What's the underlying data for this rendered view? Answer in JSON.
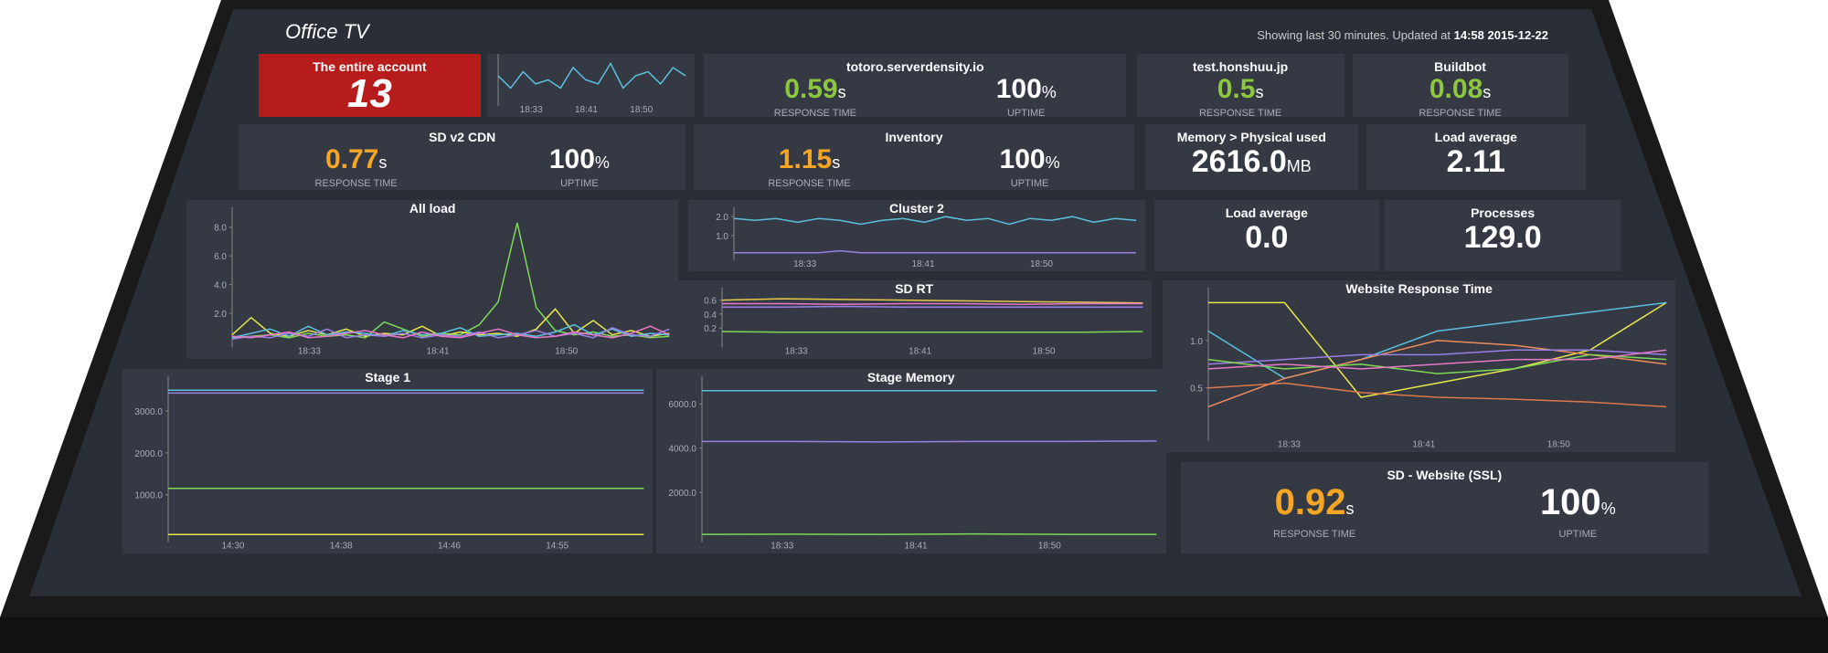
{
  "header": {
    "title": "Office TV",
    "status": "Showing last 30 minutes. Updated at",
    "updated": "14:58 2015-12-22"
  },
  "tiles": [
    {
      "kind": "account",
      "box": "a",
      "title": "The entire account",
      "value": "13"
    },
    {
      "kind": "metric",
      "box": "b",
      "title": "totoro.serverdensity.io",
      "metrics": [
        {
          "value": "0.59",
          "unit": "s",
          "label": "RESPONSE TIME",
          "color": "#8dc63f"
        },
        {
          "value": "100",
          "unit": "%",
          "label": "UPTIME",
          "color": "#ffffff"
        }
      ]
    },
    {
      "kind": "metric",
      "box": "c",
      "title": "test.honshuu.jp",
      "metrics": [
        {
          "value": "0.5",
          "unit": "s",
          "label": "RESPONSE TIME",
          "color": "#8dc63f"
        }
      ]
    },
    {
      "kind": "metric",
      "box": "d",
      "title": "Buildbot",
      "metrics": [
        {
          "value": "0.08",
          "unit": "s",
          "label": "RESPONSE TIME",
          "color": "#8dc63f"
        }
      ]
    },
    {
      "kind": "metric",
      "box": "e",
      "title": "SD v2 CDN",
      "metrics": [
        {
          "value": "0.77",
          "unit": "s",
          "label": "RESPONSE TIME",
          "color": "#f5a623"
        },
        {
          "value": "100",
          "unit": "%",
          "label": "UPTIME",
          "color": "#ffffff"
        }
      ]
    },
    {
      "kind": "metric",
      "box": "f",
      "title": "Inventory",
      "metrics": [
        {
          "value": "1.15",
          "unit": "s",
          "label": "RESPONSE TIME",
          "color": "#f5a623"
        },
        {
          "value": "100",
          "unit": "%",
          "label": "UPTIME",
          "color": "#ffffff"
        }
      ]
    },
    {
      "kind": "metric",
      "box": "g",
      "title": "Memory > Physical used",
      "metrics": [
        {
          "value": "2616.0",
          "unit": "MB",
          "color": "#ffffff"
        }
      ]
    },
    {
      "kind": "metric",
      "box": "h",
      "title": "Load average",
      "metrics": [
        {
          "value": "2.11",
          "color": "#ffffff"
        }
      ]
    },
    {
      "kind": "metric",
      "box": "i",
      "title": "Load average",
      "metrics": [
        {
          "value": "0.0",
          "color": "#ffffff"
        }
      ]
    },
    {
      "kind": "metric",
      "box": "j",
      "title": "Processes",
      "metrics": [
        {
          "value": "129.0",
          "color": "#ffffff"
        }
      ]
    },
    {
      "kind": "metric",
      "box": "k",
      "title": "SD - Website (SSL)",
      "metrics": [
        {
          "value": "0.92",
          "unit": "s",
          "label": "RESPONSE TIME",
          "color": "#f5a623"
        },
        {
          "value": "100",
          "unit": "%",
          "label": "UPTIME",
          "color": "#ffffff"
        }
      ]
    }
  ],
  "charts": [
    {
      "type": "line",
      "box": "s",
      "xticks": [
        "18:33",
        "18:41",
        "18:50"
      ],
      "ylim": [
        0,
        1
      ],
      "series": [
        {
          "color": "#5bc0de",
          "values": [
            0.6,
            0.3,
            0.7,
            0.4,
            0.5,
            0.3,
            0.8,
            0.5,
            0.4,
            0.9,
            0.3,
            0.6,
            0.7,
            0.4,
            0.8,
            0.6
          ]
        }
      ]
    },
    {
      "type": "line",
      "box": "l",
      "title": "All load",
      "xticks": [
        "18:33",
        "18:41",
        "18:50"
      ],
      "ylim": [
        0,
        9
      ],
      "yticks": [
        {
          "value": 2,
          "label": "2.0"
        },
        {
          "value": 4,
          "label": "4.0"
        },
        {
          "value": 6,
          "label": "6.0"
        },
        {
          "value": 8,
          "label": "8.0"
        }
      ],
      "series": [
        {
          "color": "#7ed957",
          "values": [
            0.3,
            0.4,
            0.5,
            0.3,
            0.6,
            0.4,
            0.5,
            0.3,
            1.4,
            0.9,
            0.4,
            0.6,
            0.5,
            1.2,
            2.8,
            8.3,
            2.4,
            0.8,
            0.5,
            0.7,
            0.4,
            0.5,
            0.3,
            0.4
          ]
        },
        {
          "color": "#e6e84a",
          "values": [
            0.5,
            1.7,
            0.6,
            0.4,
            0.8,
            0.5,
            0.9,
            0.4,
            0.6,
            0.5,
            1.1,
            0.4,
            0.7,
            0.5,
            0.6,
            0.4,
            0.9,
            2.3,
            0.6,
            1.5,
            0.5,
            0.8,
            0.4,
            0.6
          ]
        },
        {
          "color": "#5bc0de",
          "values": [
            0.3,
            0.6,
            0.9,
            0.4,
            1.1,
            0.5,
            0.7,
            0.6,
            0.4,
            0.8,
            0.5,
            0.6,
            1.0,
            0.4,
            0.5,
            0.6,
            0.4,
            0.7,
            1.2,
            0.5,
            0.9,
            0.4,
            0.6,
            0.5
          ]
        },
        {
          "color": "#9b7fe6",
          "values": [
            0.2,
            0.4,
            0.3,
            0.6,
            0.4,
            0.9,
            0.3,
            0.5,
            0.4,
            0.6,
            0.3,
            0.5,
            0.4,
            0.7,
            0.3,
            0.5,
            0.8,
            0.4,
            0.6,
            0.3,
            1.0,
            0.5,
            0.4,
            0.9
          ]
        },
        {
          "color": "#e879c6",
          "values": [
            0.4,
            0.3,
            0.5,
            0.7,
            0.3,
            0.4,
            0.6,
            0.8,
            0.5,
            0.3,
            0.7,
            0.4,
            0.3,
            0.6,
            0.9,
            0.5,
            0.3,
            0.4,
            0.7,
            0.5,
            0.3,
            0.6,
            1.1,
            0.5
          ]
        }
      ]
    },
    {
      "type": "line",
      "box": "m",
      "title": "Cluster 2",
      "xticks": [
        "18:33",
        "18:41",
        "18:50"
      ],
      "ylim": [
        0,
        2.2
      ],
      "yticks": [
        {
          "value": 1,
          "label": "1.0"
        },
        {
          "value": 2,
          "label": "2.0"
        }
      ],
      "series": [
        {
          "color": "#5bc0de",
          "values": [
            1.9,
            1.8,
            1.9,
            1.7,
            1.9,
            1.8,
            1.6,
            1.8,
            1.9,
            1.7,
            2.0,
            1.8,
            1.9,
            1.6,
            1.9,
            1.8,
            2.0,
            1.7,
            1.9,
            1.8
          ]
        },
        {
          "color": "#9b7fe6",
          "values": [
            0.1,
            0.1,
            0.1,
            0.1,
            0.1,
            0.2,
            0.1,
            0.1,
            0.1,
            0.1,
            0.1,
            0.1,
            0.1,
            0.1,
            0.1,
            0.1,
            0.1,
            0.1,
            0.1,
            0.1
          ]
        }
      ]
    },
    {
      "type": "line",
      "box": "n",
      "title": "SD RT",
      "xticks": [
        "18:33",
        "18:41",
        "18:50"
      ],
      "ylim": [
        0,
        0.7
      ],
      "yticks": [
        0.2,
        0.4,
        0.6
      ],
      "series": [
        {
          "color": "#e6c84a",
          "values": [
            0.6,
            0.62,
            0.61,
            0.6,
            0.59,
            0.58,
            0.57,
            0.56
          ]
        },
        {
          "color": "#e879c6",
          "values": [
            0.55,
            0.55,
            0.54,
            0.55,
            0.55,
            0.54,
            0.55,
            0.55
          ]
        },
        {
          "color": "#9b7fe6",
          "values": [
            0.5,
            0.5,
            0.51,
            0.5,
            0.5,
            0.5,
            0.5,
            0.5
          ]
        },
        {
          "color": "#7ed957",
          "values": [
            0.15,
            0.14,
            0.14,
            0.14,
            0.14,
            0.14,
            0.14,
            0.15
          ]
        }
      ]
    },
    {
      "type": "line",
      "box": "w",
      "title": "Website Response Time",
      "xticks": [
        "18:33",
        "18:41",
        "18:50"
      ],
      "ylim": [
        0,
        1.5
      ],
      "yticks": [
        0.5,
        {
          "value": 1,
          "label": "1.0"
        }
      ],
      "series": [
        {
          "color": "#e6e84a",
          "values": [
            1.4,
            1.4,
            0.4,
            0.55,
            0.7,
            0.9,
            1.4
          ]
        },
        {
          "color": "#5bc0de",
          "values": [
            1.1,
            0.6,
            0.8,
            1.1,
            1.2,
            1.3,
            1.4
          ]
        },
        {
          "color": "#f08c5a",
          "values": [
            0.3,
            0.6,
            0.8,
            1.0,
            0.95,
            0.85,
            0.75
          ]
        },
        {
          "color": "#e0784a",
          "values": [
            0.5,
            0.55,
            0.45,
            0.4,
            0.38,
            0.35,
            0.3
          ]
        },
        {
          "color": "#9b7fe6",
          "values": [
            0.75,
            0.8,
            0.85,
            0.85,
            0.9,
            0.9,
            0.85
          ]
        },
        {
          "color": "#7ed957",
          "values": [
            0.8,
            0.7,
            0.75,
            0.65,
            0.7,
            0.85,
            0.8
          ]
        },
        {
          "color": "#e879c6",
          "values": [
            0.7,
            0.75,
            0.7,
            0.75,
            0.8,
            0.8,
            0.9
          ]
        }
      ]
    },
    {
      "type": "line",
      "box": "t",
      "title": "Stage 1",
      "xticks": [
        "14:30",
        "14:38",
        "14:46",
        "14:55"
      ],
      "ylim": [
        0,
        3700
      ],
      "yticks": [
        {
          "value": 1000,
          "label": "1000.0"
        },
        {
          "value": 2000,
          "label": "2000.0"
        },
        {
          "value": 3000,
          "label": "3000.0"
        }
      ],
      "series": [
        {
          "color": "#5bc0de",
          "values": [
            3500,
            3500,
            3500,
            3500,
            3500,
            3500
          ]
        },
        {
          "color": "#9b7fe6",
          "values": [
            3430,
            3430,
            3430,
            3430,
            3430,
            3430
          ]
        },
        {
          "color": "#7ed957",
          "values": [
            1150,
            1150,
            1150,
            1150,
            1150,
            1150
          ]
        },
        {
          "color": "#e6e84a",
          "values": [
            50,
            50,
            50,
            50,
            50,
            50
          ]
        }
      ]
    },
    {
      "type": "line",
      "box": "u",
      "title": "Stage Memory",
      "xticks": [
        "18:33",
        "18:41",
        "18:50"
      ],
      "ylim": [
        0,
        7000
      ],
      "yticks": [
        {
          "value": 2000,
          "label": "2000.0"
        },
        {
          "value": 4000,
          "label": "4000.0"
        },
        {
          "value": 6000,
          "label": "6000.0"
        }
      ],
      "series": [
        {
          "color": "#5bc0de",
          "values": [
            6600,
            6600,
            6600,
            6600,
            6600,
            6600
          ]
        },
        {
          "color": "#9b7fe6",
          "values": [
            4300,
            4300,
            4280,
            4300,
            4300,
            4320
          ]
        },
        {
          "color": "#7ed957",
          "values": [
            100,
            110,
            100,
            120,
            100,
            100
          ]
        }
      ]
    }
  ]
}
